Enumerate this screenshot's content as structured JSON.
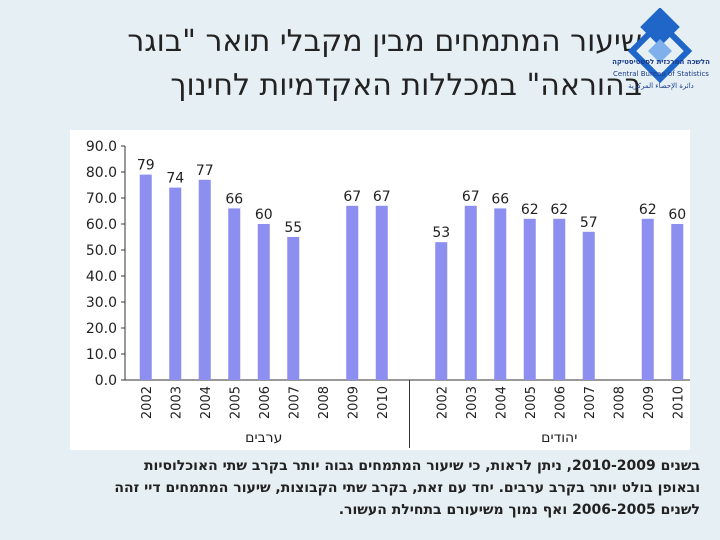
{
  "title": {
    "line1": "שיעור המתמחים מבין מקבלי תואר \"בוגר",
    "line2": "בהוראה\" במכללות האקדמיות לחינוך"
  },
  "logo": {
    "icon": "cbs-logo-icon",
    "brand_color": "#1f66c8",
    "name_he": "הלשכה המרכזית לסטטיסטיקה",
    "name_en": "Central Bureau of Statistics",
    "name_ar": "دائرة الإحصاء المركزية"
  },
  "chart_data": {
    "type": "bar",
    "title": "",
    "xlabel": "",
    "ylabel": "",
    "ylim": [
      0,
      90
    ],
    "yticks": [
      "90.0",
      "80.0",
      "70.0",
      "60.0",
      "50.0",
      "40.0",
      "30.0",
      "20.0",
      "10.0",
      "0.0"
    ],
    "bar_color": "#8c8ff0",
    "grid": false,
    "groups": [
      {
        "name": "ערבים",
        "categories": [
          "2002",
          "2003",
          "2004",
          "2005",
          "2006",
          "2007",
          "2008",
          "2009",
          "2010"
        ],
        "values": [
          79,
          74,
          77,
          66,
          60,
          55,
          null,
          67,
          67
        ],
        "labels": [
          "79",
          "74",
          "77",
          "66",
          "60",
          "55",
          "",
          "67",
          "67"
        ]
      },
      {
        "name": "יהודים",
        "categories": [
          "2002",
          "2003",
          "2004",
          "2005",
          "2006",
          "2007",
          "2008",
          "2009",
          "2010"
        ],
        "values": [
          53,
          67,
          66,
          62,
          62,
          57,
          null,
          62,
          60
        ],
        "labels": [
          "53",
          "67",
          "66",
          "62",
          "62",
          "57",
          "",
          "62",
          "60"
        ]
      }
    ]
  },
  "footnote": {
    "line1": "בשנים 2010-2009, ניתן לראות, כי שיעור המתמחים גבוה יותר בקרב שתי האוכלוסיות",
    "line2": "ובאופן בולט יותר בקרב ערבים. יחד עם זאת, בקרב שתי הקבוצות, שיעור המתמחים דיי זהה",
    "line3": "לשנים 2006-2005 ואף נמוך משיעורם בתחילת העשור."
  }
}
